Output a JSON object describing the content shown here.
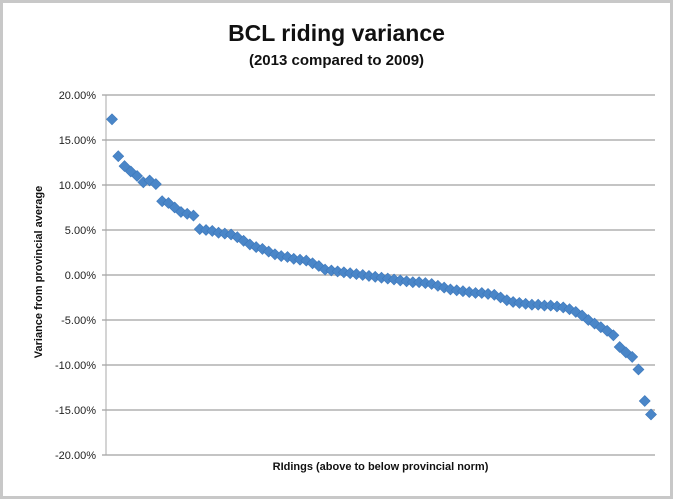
{
  "chart_data": {
    "type": "scatter",
    "title": "BCL riding variance",
    "subtitle": "(2013 compared to 2009)",
    "xlabel": "RIdings (above to below provincial norm)",
    "ylabel": "Variance from provincial average",
    "ylim": [
      -0.2,
      0.2
    ],
    "yticks": [
      "20.00%",
      "15.00%",
      "10.00%",
      "5.00%",
      "0.00%",
      "-5.00%",
      "-10.00%",
      "-15.00%",
      "-20.00%"
    ],
    "grid": true,
    "legend": "none",
    "marker": "diamond",
    "series_color": "#4a86c8",
    "series": [
      {
        "name": "Variance",
        "values": [
          0.173,
          0.132,
          0.121,
          0.115,
          0.11,
          0.103,
          0.105,
          0.101,
          0.082,
          0.08,
          0.075,
          0.07,
          0.068,
          0.066,
          0.051,
          0.05,
          0.049,
          0.047,
          0.046,
          0.045,
          0.042,
          0.038,
          0.034,
          0.031,
          0.029,
          0.026,
          0.023,
          0.021,
          0.02,
          0.018,
          0.017,
          0.016,
          0.013,
          0.01,
          0.006,
          0.005,
          0.004,
          0.003,
          0.002,
          0.001,
          0.0,
          -0.001,
          -0.002,
          -0.003,
          -0.004,
          -0.005,
          -0.006,
          -0.007,
          -0.008,
          -0.008,
          -0.009,
          -0.01,
          -0.012,
          -0.014,
          -0.016,
          -0.017,
          -0.018,
          -0.019,
          -0.02,
          -0.02,
          -0.021,
          -0.022,
          -0.025,
          -0.028,
          -0.03,
          -0.031,
          -0.032,
          -0.033,
          -0.033,
          -0.034,
          -0.034,
          -0.035,
          -0.036,
          -0.038,
          -0.041,
          -0.045,
          -0.05,
          -0.054,
          -0.058,
          -0.062,
          -0.067,
          -0.08,
          -0.086,
          -0.091,
          -0.105,
          -0.14,
          -0.155
        ]
      }
    ]
  }
}
